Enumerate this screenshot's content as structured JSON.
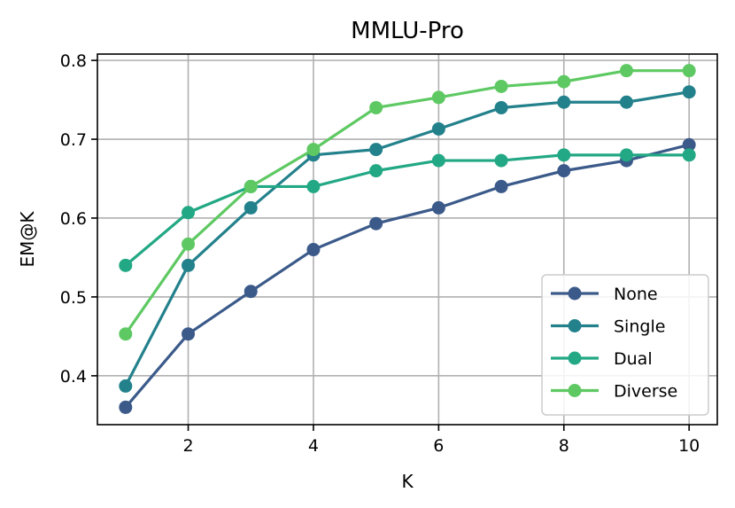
{
  "chart_data": {
    "type": "line",
    "title": "MMLU-Pro",
    "xlabel": "K",
    "ylabel": "EM@K",
    "x": [
      1,
      2,
      3,
      4,
      5,
      6,
      7,
      8,
      9,
      10
    ],
    "xlim": [
      0.55,
      10.45
    ],
    "ylim": [
      0.338,
      0.808
    ],
    "xticks": [
      2,
      4,
      6,
      8,
      10
    ],
    "yticks": [
      0.4,
      0.5,
      0.6,
      0.7,
      0.8
    ],
    "xtick_labels": [
      "2",
      "4",
      "6",
      "8",
      "10"
    ],
    "ytick_labels": [
      "0.4",
      "0.5",
      "0.6",
      "0.7",
      "0.8"
    ],
    "grid": true,
    "legend_position": "lower-right",
    "series": [
      {
        "name": "None",
        "color": "#3b5a8a",
        "values": [
          0.36,
          0.453,
          0.507,
          0.56,
          0.593,
          0.613,
          0.64,
          0.66,
          0.673,
          0.693
        ]
      },
      {
        "name": "Single",
        "color": "#23818c",
        "values": [
          0.387,
          0.54,
          0.613,
          0.68,
          0.687,
          0.713,
          0.74,
          0.747,
          0.747,
          0.76
        ]
      },
      {
        "name": "Dual",
        "color": "#22a884",
        "values": [
          0.54,
          0.607,
          0.64,
          0.64,
          0.66,
          0.673,
          0.673,
          0.68,
          0.68,
          0.68
        ]
      },
      {
        "name": "Diverse",
        "color": "#5ec962",
        "values": [
          0.453,
          0.567,
          0.64,
          0.687,
          0.74,
          0.753,
          0.767,
          0.773,
          0.787,
          0.787
        ]
      }
    ]
  }
}
